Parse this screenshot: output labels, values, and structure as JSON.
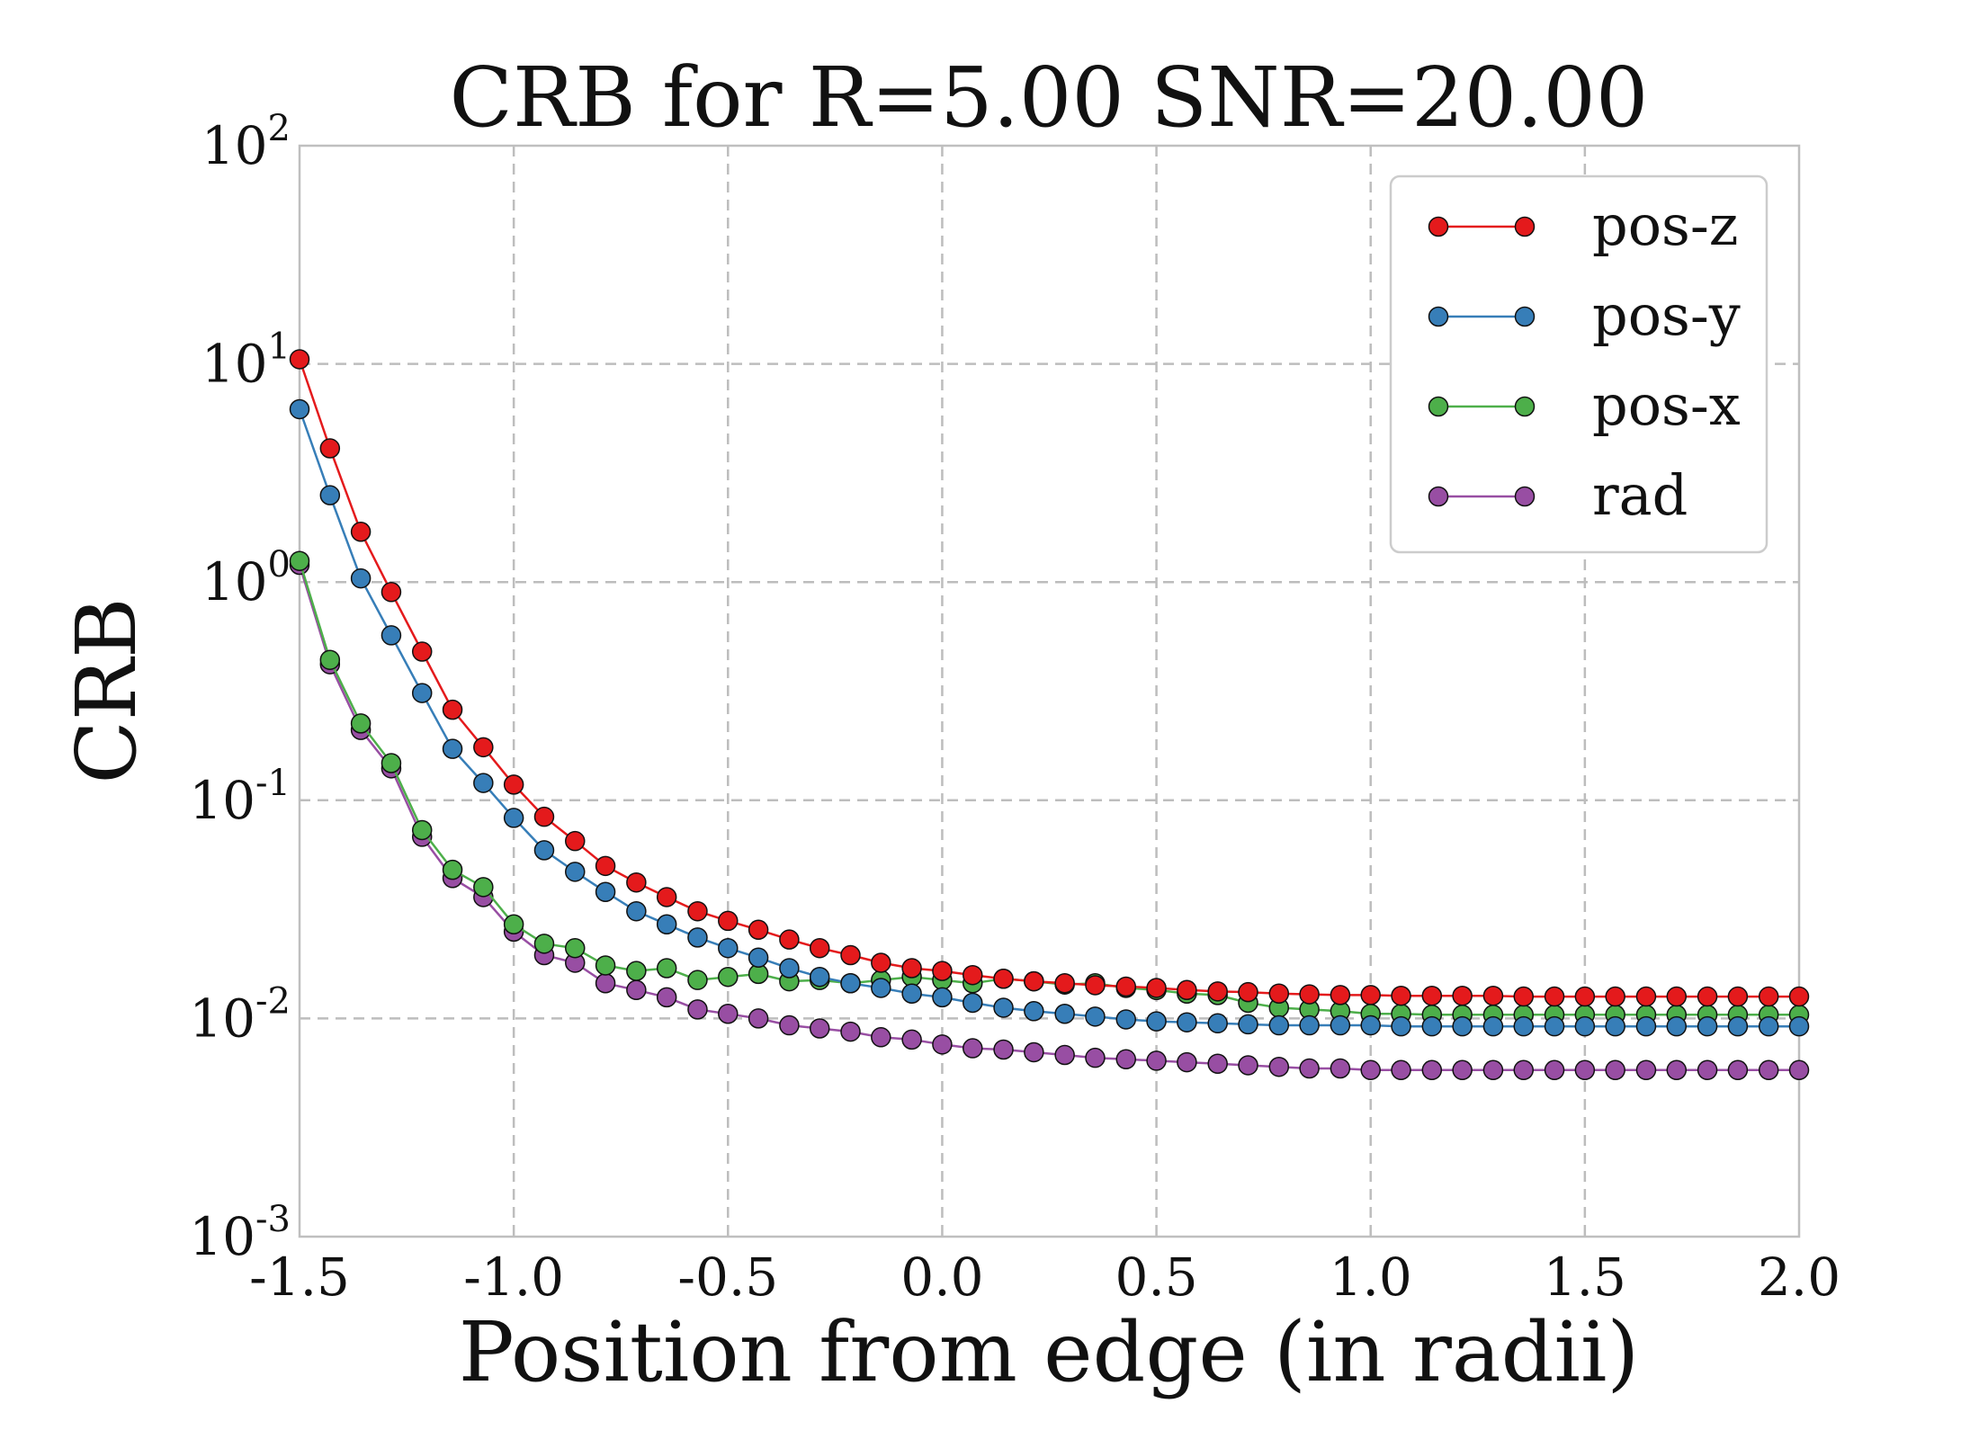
{
  "chart_data": {
    "type": "line",
    "title": "CRB for R=5.00 SNR=20.00",
    "xlabel": "Position from edge (in radii)",
    "ylabel": "CRB",
    "yscale": "log",
    "xlim": [
      -1.5,
      2.0
    ],
    "ylim": [
      0.001,
      100
    ],
    "grid": true,
    "legend_position": "top-right",
    "x_ticks": [
      "-1.5",
      "-1.0",
      "-0.5",
      "0.0",
      "0.5",
      "1.0",
      "1.5",
      "2.0"
    ],
    "y_ticks": [
      {
        "base": "10",
        "exp": "-3",
        "value": 0.001
      },
      {
        "base": "10",
        "exp": "-2",
        "value": 0.01
      },
      {
        "base": "10",
        "exp": "-1",
        "value": 0.1
      },
      {
        "base": "10",
        "exp": "0",
        "value": 1
      },
      {
        "base": "10",
        "exp": "1",
        "value": 10
      },
      {
        "base": "10",
        "exp": "2",
        "value": 100
      }
    ],
    "x": [
      -1.5,
      -1.429,
      -1.357,
      -1.286,
      -1.214,
      -1.143,
      -1.071,
      -1.0,
      -0.929,
      -0.857,
      -0.786,
      -0.714,
      -0.643,
      -0.571,
      -0.5,
      -0.429,
      -0.357,
      -0.286,
      -0.214,
      -0.143,
      -0.071,
      0.0,
      0.071,
      0.143,
      0.214,
      0.286,
      0.357,
      0.429,
      0.5,
      0.571,
      0.643,
      0.714,
      0.786,
      0.857,
      0.929,
      1.0,
      1.071,
      1.143,
      1.214,
      1.286,
      1.357,
      1.429,
      1.5,
      1.571,
      1.643,
      1.714,
      1.786,
      1.857,
      1.929,
      2.0
    ],
    "series": [
      {
        "name": "pos-z",
        "color": "#e41a1c",
        "values": [
          10.5,
          4.1,
          1.7,
          0.9,
          0.48,
          0.26,
          0.175,
          0.118,
          0.084,
          0.065,
          0.05,
          0.042,
          0.036,
          0.031,
          0.028,
          0.0255,
          0.023,
          0.021,
          0.0195,
          0.018,
          0.017,
          0.0165,
          0.0158,
          0.0152,
          0.0148,
          0.0145,
          0.0142,
          0.014,
          0.0138,
          0.0135,
          0.0133,
          0.0132,
          0.013,
          0.0129,
          0.0128,
          0.0128,
          0.0127,
          0.0127,
          0.0127,
          0.0127,
          0.0126,
          0.0126,
          0.0126,
          0.0126,
          0.0126,
          0.0126,
          0.0126,
          0.0126,
          0.0126,
          0.0126
        ]
      },
      {
        "name": "pos-y",
        "color": "#377eb8",
        "values": [
          6.2,
          2.5,
          1.04,
          0.57,
          0.31,
          0.172,
          0.12,
          0.083,
          0.059,
          0.047,
          0.038,
          0.031,
          0.027,
          0.0235,
          0.021,
          0.019,
          0.017,
          0.0155,
          0.0145,
          0.0138,
          0.013,
          0.0125,
          0.0118,
          0.0112,
          0.0108,
          0.0105,
          0.0102,
          0.0099,
          0.0097,
          0.0096,
          0.0095,
          0.0094,
          0.0093,
          0.0093,
          0.0093,
          0.0093,
          0.0092,
          0.0092,
          0.0092,
          0.0092,
          0.0092,
          0.0092,
          0.0092,
          0.0092,
          0.0092,
          0.0092,
          0.0092,
          0.0092,
          0.0092,
          0.0092
        ]
      },
      {
        "name": "pos-x",
        "color": "#4daf4a",
        "values": [
          1.25,
          0.44,
          0.225,
          0.148,
          0.073,
          0.048,
          0.04,
          0.027,
          0.022,
          0.021,
          0.0175,
          0.0165,
          0.017,
          0.015,
          0.0155,
          0.016,
          0.0148,
          0.015,
          0.0145,
          0.015,
          0.0155,
          0.015,
          0.0145,
          0.0152,
          0.0148,
          0.0143,
          0.0145,
          0.0138,
          0.0135,
          0.013,
          0.0128,
          0.0118,
          0.0112,
          0.011,
          0.0108,
          0.0105,
          0.0105,
          0.0104,
          0.0104,
          0.0104,
          0.0104,
          0.0104,
          0.0104,
          0.0104,
          0.0104,
          0.0104,
          0.0104,
          0.0104,
          0.0104,
          0.0104
        ]
      },
      {
        "name": "rad",
        "color": "#984ea3",
        "values": [
          1.2,
          0.42,
          0.21,
          0.14,
          0.068,
          0.044,
          0.036,
          0.025,
          0.0195,
          0.018,
          0.0145,
          0.0135,
          0.0125,
          0.011,
          0.0105,
          0.01,
          0.0093,
          0.009,
          0.0087,
          0.0082,
          0.008,
          0.0076,
          0.0073,
          0.0072,
          0.007,
          0.0068,
          0.0066,
          0.0065,
          0.0064,
          0.0063,
          0.0062,
          0.0061,
          0.006,
          0.0059,
          0.0059,
          0.0058,
          0.0058,
          0.0058,
          0.0058,
          0.0058,
          0.0058,
          0.0058,
          0.0058,
          0.0058,
          0.0058,
          0.0058,
          0.0058,
          0.0058,
          0.0058,
          0.0058
        ]
      }
    ]
  }
}
